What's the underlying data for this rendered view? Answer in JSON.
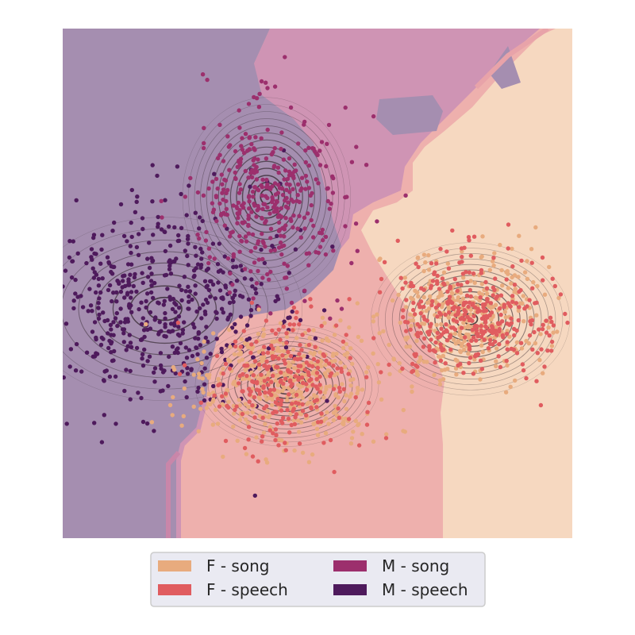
{
  "chart_data": {
    "type": "scatter",
    "title": "",
    "xlabel": "",
    "ylabel": "",
    "xlim": [
      0,
      1
    ],
    "ylim": [
      0,
      1
    ],
    "grid": false,
    "axes_visible": false,
    "overlays": [
      "decision-region-fill",
      "kde-density-contours"
    ],
    "legend": {
      "placement": "bottom-center",
      "columns": 2
    },
    "series": [
      {
        "name": "F - song",
        "color": "#e8ab7e",
        "region_color": "#f6d8c0",
        "cluster_center": [
          0.44,
          0.3
        ],
        "cluster_count_approx": 450,
        "secondary_center": [
          0.8,
          0.43
        ],
        "secondary_count_approx": 350
      },
      {
        "name": "F - speech",
        "color": "#e05c5f",
        "region_color": "#eeb0ad",
        "cluster_center": [
          0.8,
          0.43
        ],
        "cluster_count_approx": 350,
        "secondary_center": [
          0.44,
          0.3
        ],
        "secondary_count_approx": 250
      },
      {
        "name": "M - song",
        "color": "#9c2f6d",
        "region_color": "#cf94b4",
        "cluster_center": [
          0.4,
          0.67
        ],
        "cluster_count_approx": 380
      },
      {
        "name": "M - speech",
        "color": "#4e1a5c",
        "region_color": "#a58eb0",
        "cluster_center": [
          0.2,
          0.45
        ],
        "cluster_count_approx": 550
      }
    ]
  }
}
